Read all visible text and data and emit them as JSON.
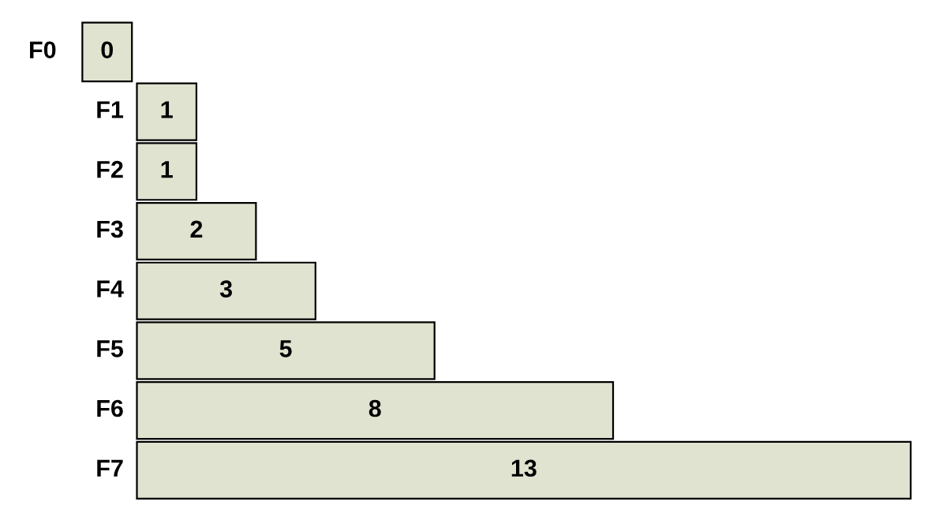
{
  "chart_data": {
    "type": "bar",
    "orientation": "horizontal",
    "categories": [
      "F0",
      "F1",
      "F2",
      "F3",
      "F4",
      "F5",
      "F6",
      "F7"
    ],
    "values": [
      0,
      1,
      1,
      2,
      3,
      5,
      8,
      13
    ],
    "color": "#dfe3cf",
    "data_labels": true,
    "xlim": [
      -2.3,
      13.66
    ]
  }
}
